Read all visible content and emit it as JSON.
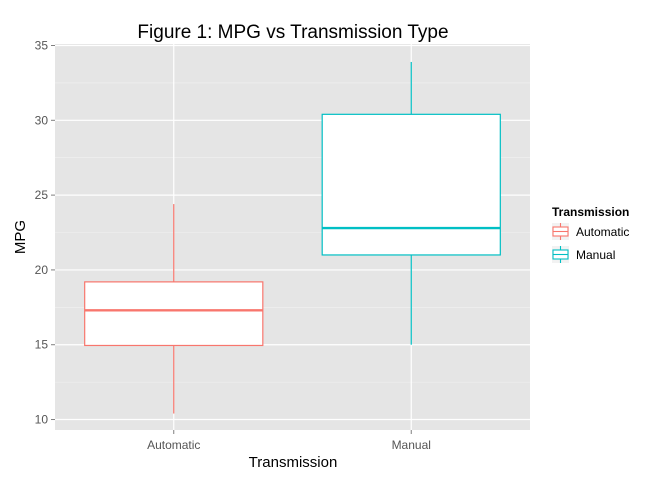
{
  "chart_data": {
    "type": "boxplot",
    "title": "Figure 1: MPG vs Transmission Type",
    "xlabel": "Transmission",
    "ylabel": "MPG",
    "ylim": [
      9.3,
      35.1
    ],
    "yticks": [
      10,
      15,
      20,
      25,
      30,
      35
    ],
    "categories": [
      "Automatic",
      "Manual"
    ],
    "series": [
      {
        "name": "Automatic",
        "color": "#F8766D",
        "min": 10.4,
        "q1": 14.95,
        "median": 17.3,
        "q3": 19.2,
        "max": 24.4
      },
      {
        "name": "Manual",
        "color": "#00BFC4",
        "min": 15.0,
        "q1": 21.0,
        "median": 22.8,
        "q3": 30.4,
        "max": 33.9
      }
    ],
    "grid": true,
    "panel_background": "#E5E5E5",
    "legend": {
      "title": "Transmission",
      "placement": "right",
      "entries": [
        "Automatic",
        "Manual"
      ]
    }
  }
}
